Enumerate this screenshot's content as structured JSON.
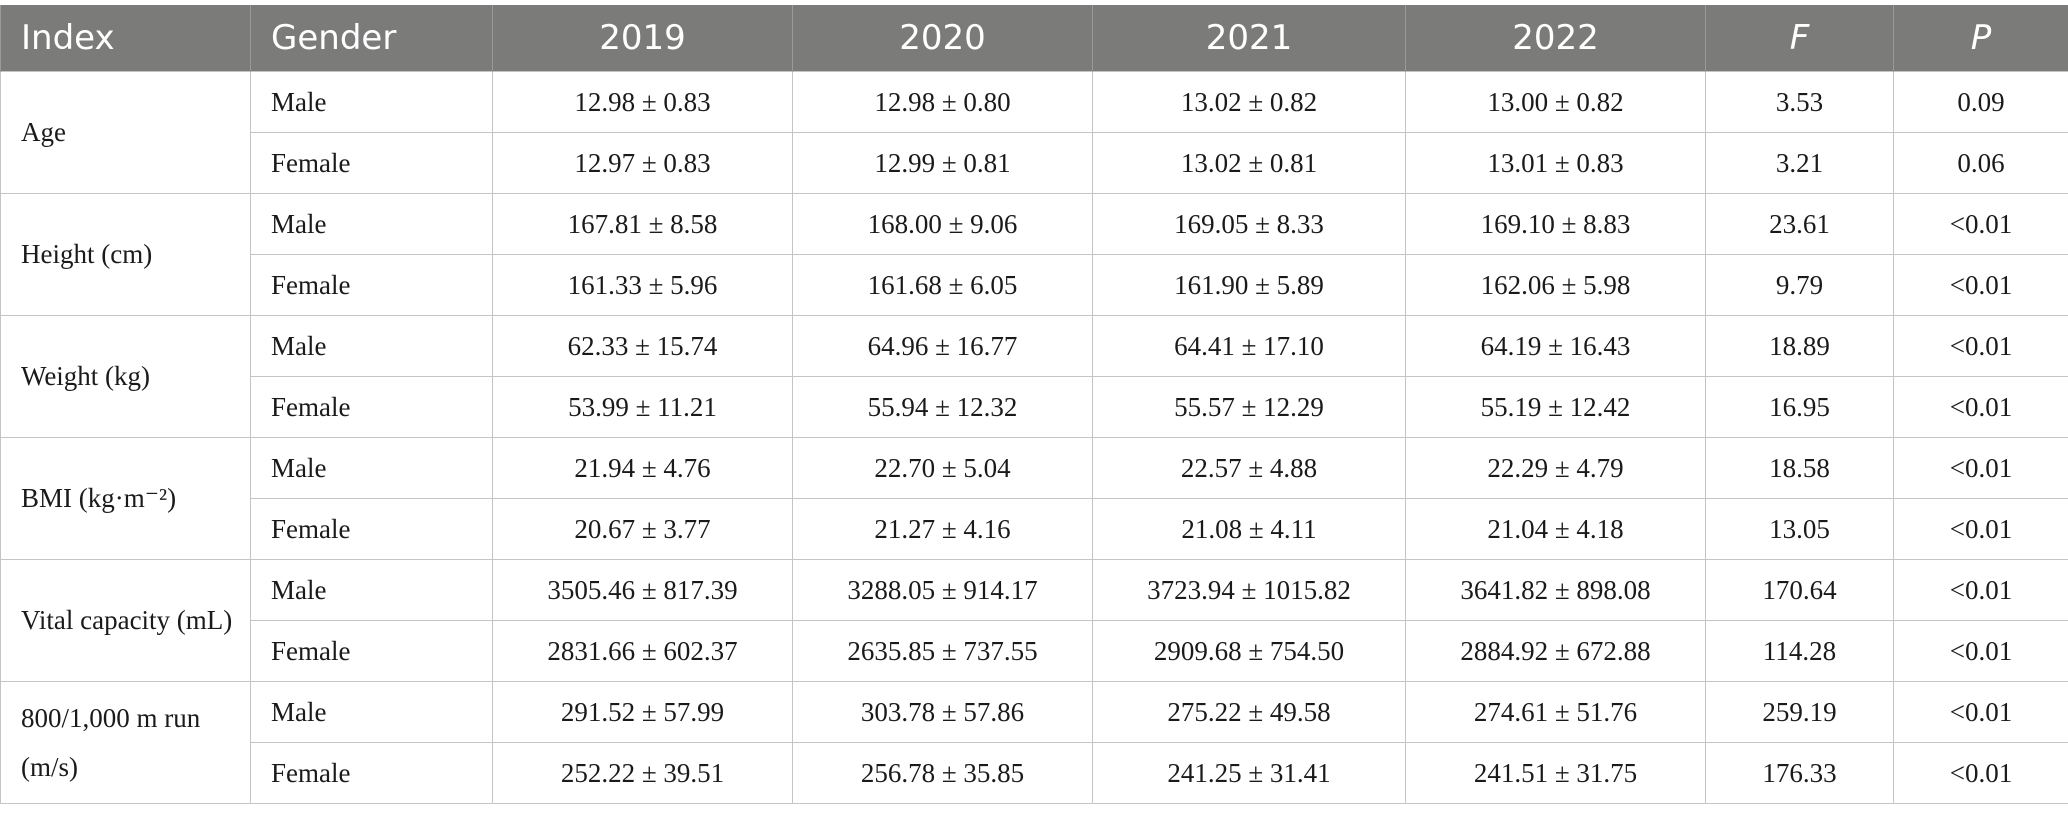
{
  "table": {
    "headers": [
      "Index",
      "Gender",
      "2019",
      "2020",
      "2021",
      "2022",
      "F",
      "P"
    ],
    "groups": [
      {
        "index": "Age",
        "rows": [
          {
            "gender": "Male",
            "y2019": "12.98 ± 0.83",
            "y2020": "12.98 ± 0.80",
            "y2021": "13.02 ± 0.82",
            "y2022": "13.00 ± 0.82",
            "f": "3.53",
            "p": "0.09"
          },
          {
            "gender": "Female",
            "y2019": "12.97 ± 0.83",
            "y2020": "12.99 ± 0.81",
            "y2021": "13.02 ± 0.81",
            "y2022": "13.01 ± 0.83",
            "f": "3.21",
            "p": "0.06"
          }
        ]
      },
      {
        "index": "Height (cm)",
        "rows": [
          {
            "gender": "Male",
            "y2019": "167.81 ± 8.58",
            "y2020": "168.00 ± 9.06",
            "y2021": "169.05 ± 8.33",
            "y2022": "169.10 ± 8.83",
            "f": "23.61",
            "p": "<0.01"
          },
          {
            "gender": "Female",
            "y2019": "161.33 ± 5.96",
            "y2020": "161.68 ± 6.05",
            "y2021": "161.90 ± 5.89",
            "y2022": "162.06 ± 5.98",
            "f": "9.79",
            "p": "<0.01"
          }
        ]
      },
      {
        "index": "Weight (kg)",
        "rows": [
          {
            "gender": "Male",
            "y2019": "62.33 ± 15.74",
            "y2020": "64.96 ± 16.77",
            "y2021": "64.41 ± 17.10",
            "y2022": "64.19 ± 16.43",
            "f": "18.89",
            "p": "<0.01"
          },
          {
            "gender": "Female",
            "y2019": "53.99 ± 11.21",
            "y2020": "55.94 ± 12.32",
            "y2021": "55.57 ± 12.29",
            "y2022": "55.19 ± 12.42",
            "f": "16.95",
            "p": "<0.01"
          }
        ]
      },
      {
        "index": "BMI (kg·m⁻²)",
        "rows": [
          {
            "gender": "Male",
            "y2019": "21.94 ± 4.76",
            "y2020": "22.70 ± 5.04",
            "y2021": "22.57 ± 4.88",
            "y2022": "22.29 ± 4.79",
            "f": "18.58",
            "p": "<0.01"
          },
          {
            "gender": "Female",
            "y2019": "20.67 ± 3.77",
            "y2020": "21.27 ± 4.16",
            "y2021": "21.08 ± 4.11",
            "y2022": "21.04 ± 4.18",
            "f": "13.05",
            "p": "<0.01"
          }
        ]
      },
      {
        "index": "Vital capacity (mL)",
        "rows": [
          {
            "gender": "Male",
            "y2019": "3505.46 ± 817.39",
            "y2020": "3288.05 ± 914.17",
            "y2021": "3723.94 ± 1015.82",
            "y2022": "3641.82 ± 898.08",
            "f": "170.64",
            "p": "<0.01"
          },
          {
            "gender": "Female",
            "y2019": "2831.66 ± 602.37",
            "y2020": "2635.85 ± 737.55",
            "y2021": "2909.68 ± 754.50",
            "y2022": "2884.92 ± 672.88",
            "f": "114.28",
            "p": "<0.01"
          }
        ]
      },
      {
        "index": "800/1,000 m run (m/s)",
        "rows": [
          {
            "gender": "Male",
            "y2019": "291.52 ± 57.99",
            "y2020": "303.78 ± 57.86",
            "y2021": "275.22 ± 49.58",
            "y2022": "274.61 ± 51.76",
            "f": "259.19",
            "p": "<0.01"
          },
          {
            "gender": "Female",
            "y2019": "252.22 ± 39.51",
            "y2020": "256.78 ± 35.85",
            "y2021": "241.25 ± 31.41",
            "y2022": "241.51 ± 31.75",
            "f": "176.33",
            "p": "<0.01"
          }
        ]
      }
    ]
  }
}
